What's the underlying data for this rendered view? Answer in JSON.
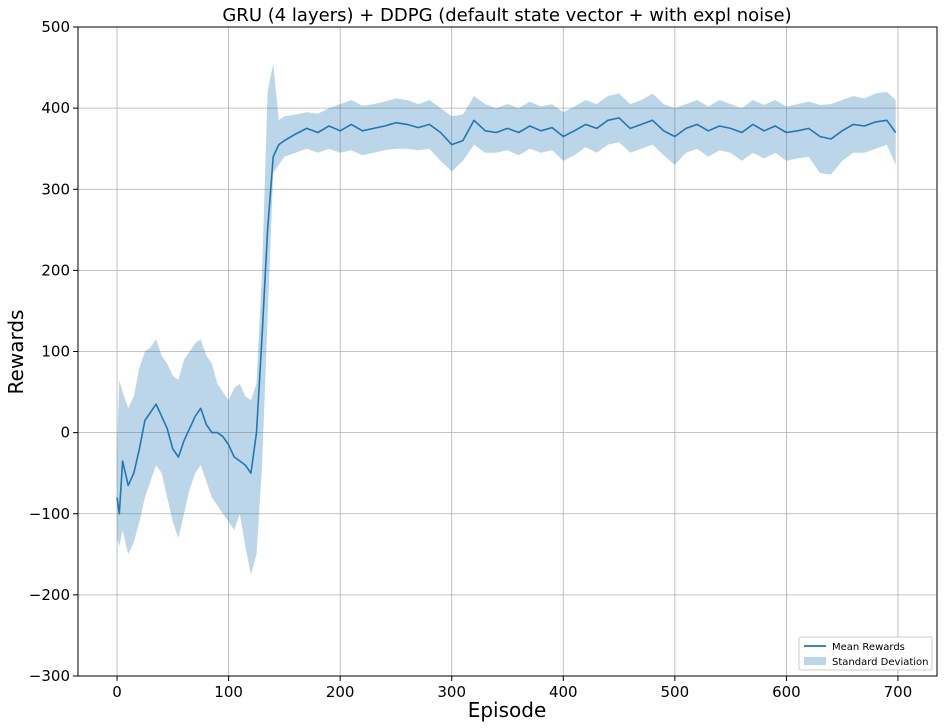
{
  "chart_data": {
    "type": "line",
    "title": "GRU (4 layers) + DDPG (default state vector + with expl noise)",
    "xlabel": "Episode",
    "ylabel": "Rewards",
    "xlim": [
      -35,
      735
    ],
    "ylim": [
      -300,
      500
    ],
    "xticks": [
      0,
      100,
      200,
      300,
      400,
      500,
      600,
      700
    ],
    "yticks": [
      -300,
      -200,
      -100,
      0,
      100,
      200,
      300,
      400,
      500
    ],
    "xtick_labels": [
      "0",
      "100",
      "200",
      "300",
      "400",
      "500",
      "600",
      "700"
    ],
    "ytick_labels": [
      "−300",
      "−200",
      "−100",
      "0",
      "100",
      "200",
      "300",
      "400",
      "500"
    ],
    "grid": true,
    "legend_position": "lower right",
    "series": [
      {
        "name": "Mean Rewards",
        "kind": "line",
        "color": "#1f77b4",
        "x": [
          0,
          2,
          5,
          10,
          15,
          20,
          25,
          30,
          35,
          40,
          45,
          50,
          55,
          60,
          65,
          70,
          75,
          80,
          85,
          90,
          95,
          100,
          105,
          110,
          115,
          120,
          125,
          130,
          135,
          140,
          145,
          150,
          160,
          170,
          180,
          190,
          200,
          210,
          220,
          230,
          240,
          250,
          260,
          270,
          280,
          290,
          300,
          310,
          320,
          330,
          340,
          350,
          360,
          370,
          380,
          390,
          400,
          410,
          420,
          430,
          440,
          450,
          460,
          470,
          480,
          490,
          500,
          510,
          520,
          530,
          540,
          550,
          560,
          570,
          580,
          590,
          600,
          610,
          620,
          630,
          640,
          650,
          660,
          670,
          680,
          690,
          698
        ],
        "values": [
          -80,
          -100,
          -35,
          -65,
          -50,
          -20,
          15,
          25,
          35,
          20,
          5,
          -20,
          -30,
          -10,
          5,
          20,
          30,
          10,
          0,
          0,
          -5,
          -15,
          -30,
          -35,
          -40,
          -50,
          0,
          120,
          250,
          340,
          355,
          360,
          368,
          375,
          370,
          378,
          372,
          380,
          372,
          375,
          378,
          382,
          380,
          376,
          380,
          370,
          355,
          360,
          385,
          372,
          370,
          375,
          370,
          378,
          372,
          376,
          365,
          372,
          380,
          375,
          385,
          388,
          375,
          380,
          385,
          372,
          365,
          375,
          380,
          372,
          378,
          375,
          370,
          380,
          372,
          378,
          370,
          372,
          375,
          365,
          362,
          372,
          380,
          378,
          383,
          385,
          370
        ]
      },
      {
        "name": "Standard Deviation",
        "kind": "band",
        "color": "#1f77b4",
        "x": [
          0,
          2,
          5,
          10,
          15,
          20,
          25,
          30,
          35,
          40,
          45,
          50,
          55,
          60,
          65,
          70,
          75,
          80,
          85,
          90,
          95,
          100,
          105,
          110,
          115,
          120,
          125,
          130,
          135,
          140,
          145,
          150,
          160,
          170,
          180,
          190,
          200,
          210,
          220,
          230,
          240,
          250,
          260,
          270,
          280,
          290,
          300,
          310,
          320,
          330,
          340,
          350,
          360,
          370,
          380,
          390,
          400,
          410,
          420,
          430,
          440,
          450,
          460,
          470,
          480,
          490,
          500,
          510,
          520,
          530,
          540,
          550,
          560,
          570,
          580,
          590,
          600,
          610,
          620,
          630,
          640,
          650,
          660,
          670,
          680,
          690,
          698
        ],
        "lower": [
          -130,
          -140,
          -120,
          -150,
          -135,
          -110,
          -80,
          -60,
          -40,
          -50,
          -80,
          -110,
          -130,
          -100,
          -70,
          -50,
          -40,
          -60,
          -80,
          -90,
          -100,
          -110,
          -120,
          -100,
          -140,
          -175,
          -150,
          -40,
          140,
          320,
          330,
          340,
          345,
          350,
          345,
          350,
          345,
          348,
          342,
          345,
          348,
          350,
          350,
          348,
          350,
          335,
          322,
          335,
          355,
          345,
          345,
          348,
          342,
          350,
          345,
          348,
          335,
          342,
          352,
          345,
          355,
          358,
          345,
          350,
          355,
          342,
          330,
          345,
          350,
          340,
          348,
          345,
          335,
          345,
          338,
          345,
          335,
          338,
          340,
          320,
          318,
          335,
          345,
          345,
          350,
          355,
          330
        ],
        "upper": [
          -20,
          65,
          50,
          30,
          45,
          80,
          100,
          105,
          115,
          95,
          85,
          70,
          65,
          90,
          100,
          110,
          115,
          95,
          85,
          60,
          50,
          40,
          55,
          60,
          45,
          40,
          60,
          200,
          420,
          455,
          385,
          390,
          392,
          395,
          393,
          400,
          405,
          410,
          403,
          405,
          408,
          412,
          410,
          405,
          410,
          400,
          390,
          392,
          415,
          405,
          400,
          405,
          400,
          408,
          402,
          405,
          395,
          402,
          410,
          405,
          415,
          418,
          405,
          410,
          418,
          405,
          400,
          405,
          410,
          402,
          410,
          405,
          400,
          410,
          404,
          410,
          402,
          405,
          408,
          404,
          405,
          410,
          415,
          412,
          418,
          420,
          410
        ]
      }
    ]
  }
}
